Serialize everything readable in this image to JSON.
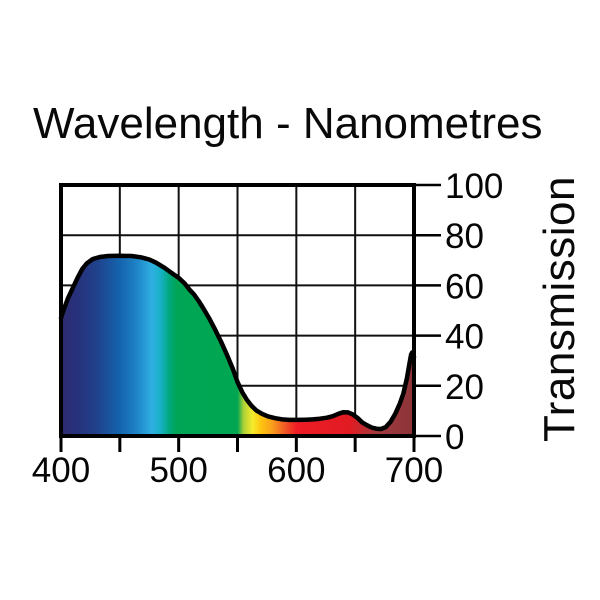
{
  "chart_data": {
    "type": "area",
    "title": "Wavelength - Nanometres",
    "ylabel": "Transmission",
    "x_axis_unit": "nanometres",
    "y_axis_unit": "percent",
    "xlim": [
      400,
      700
    ],
    "ylim": [
      0,
      100
    ],
    "x_tick_labels": [
      400,
      500,
      600,
      700
    ],
    "x_gridlines": [
      400,
      450,
      500,
      550,
      600,
      650,
      700
    ],
    "y_ticks": [
      0,
      20,
      40,
      60,
      80,
      100
    ],
    "grid": true,
    "legend": "none",
    "series_name": "transmission_percent_vs_wavelength",
    "points": [
      [
        400,
        47
      ],
      [
        402,
        50
      ],
      [
        406,
        55
      ],
      [
        410,
        59
      ],
      [
        414,
        63
      ],
      [
        418,
        66.5
      ],
      [
        422,
        68.8
      ],
      [
        427,
        70.5
      ],
      [
        433,
        71.3
      ],
      [
        440,
        71.7
      ],
      [
        450,
        71.8
      ],
      [
        460,
        71.7
      ],
      [
        468,
        71.2
      ],
      [
        475,
        70.3
      ],
      [
        481,
        69
      ],
      [
        488,
        67
      ],
      [
        494,
        65
      ],
      [
        500,
        63
      ],
      [
        505,
        60.8
      ],
      [
        509,
        58.4
      ],
      [
        513,
        56.4
      ],
      [
        517,
        53.8
      ],
      [
        521,
        50.8
      ],
      [
        526,
        46.8
      ],
      [
        531,
        42.4
      ],
      [
        536,
        37.6
      ],
      [
        541,
        32.4
      ],
      [
        546,
        26.8
      ],
      [
        550,
        21.5
      ],
      [
        554,
        17.5
      ],
      [
        558,
        14.4
      ],
      [
        562,
        12
      ],
      [
        566,
        10.2
      ],
      [
        571,
        8.8
      ],
      [
        576,
        7.8
      ],
      [
        582,
        7.1
      ],
      [
        588,
        6.6
      ],
      [
        594,
        6.4
      ],
      [
        601,
        6.4
      ],
      [
        608,
        6.5
      ],
      [
        614,
        6.6
      ],
      [
        620,
        6.9
      ],
      [
        626,
        7.3
      ],
      [
        631,
        7.9
      ],
      [
        636,
        8.9
      ],
      [
        640,
        9.5
      ],
      [
        644,
        9.4
      ],
      [
        648,
        8.6
      ],
      [
        652,
        7.2
      ],
      [
        656,
        5.4
      ],
      [
        660,
        4.3
      ],
      [
        664,
        3.4
      ],
      [
        668,
        2.9
      ],
      [
        672,
        2.8
      ],
      [
        676,
        3.6
      ],
      [
        680,
        5.6
      ],
      [
        684,
        8.8
      ],
      [
        688,
        13
      ],
      [
        691,
        17
      ],
      [
        694,
        23
      ],
      [
        696,
        28.5
      ],
      [
        697.5,
        32.5
      ],
      [
        698.5,
        33.3
      ],
      [
        699.3,
        30
      ],
      [
        700,
        31.5
      ]
    ],
    "spectrum_gradient": [
      {
        "pos": 0.0,
        "color": "#2d2b6e"
      },
      {
        "pos": 0.04,
        "color": "#28307a"
      },
      {
        "pos": 0.1,
        "color": "#20418b"
      },
      {
        "pos": 0.167,
        "color": "#1464ae"
      },
      {
        "pos": 0.217,
        "color": "#1f86c8"
      },
      {
        "pos": 0.257,
        "color": "#2fb0e2"
      },
      {
        "pos": 0.283,
        "color": "#16b0c5"
      },
      {
        "pos": 0.307,
        "color": "#00a87d"
      },
      {
        "pos": 0.327,
        "color": "#00a655"
      },
      {
        "pos": 0.5,
        "color": "#00a651"
      },
      {
        "pos": 0.517,
        "color": "#abd037"
      },
      {
        "pos": 0.543,
        "color": "#f6eb2c"
      },
      {
        "pos": 0.567,
        "color": "#fdc410"
      },
      {
        "pos": 0.6,
        "color": "#f89c1c"
      },
      {
        "pos": 0.633,
        "color": "#f15b25"
      },
      {
        "pos": 0.667,
        "color": "#ee1c25"
      },
      {
        "pos": 0.82,
        "color": "#e11b23"
      },
      {
        "pos": 0.855,
        "color": "#c12a30"
      },
      {
        "pos": 0.9,
        "color": "#9e3a40"
      },
      {
        "pos": 1.0,
        "color": "#8c3337"
      }
    ],
    "line_color": "#000000",
    "grid_color": "#111111"
  }
}
